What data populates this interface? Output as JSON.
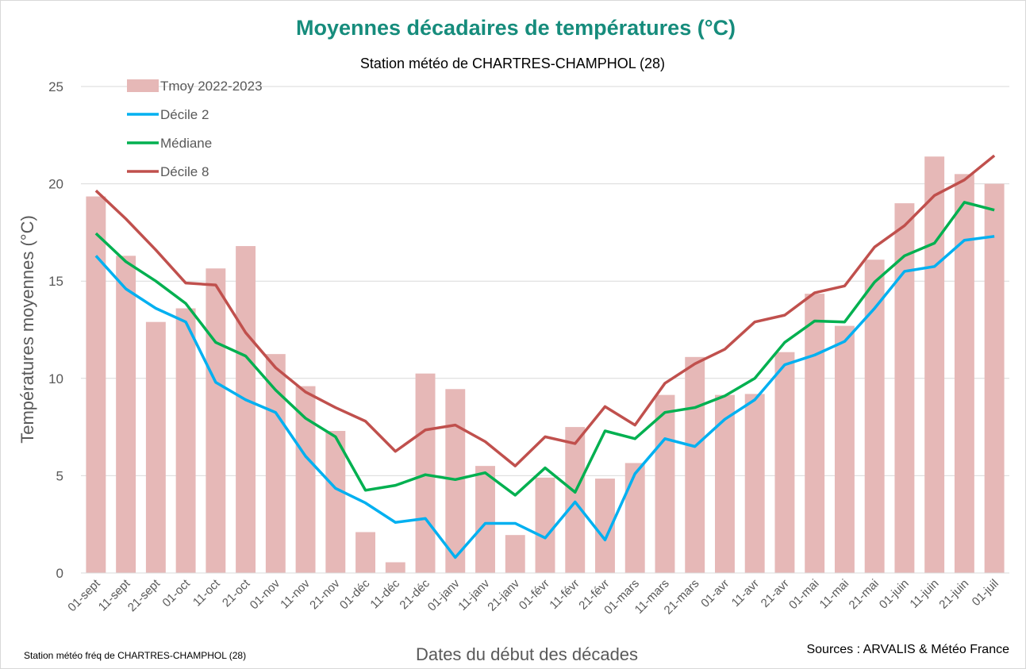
{
  "chart_data": {
    "type": "bar_line",
    "title": "Moyennes décadaires de températures (°C)",
    "subtitle": "Station météo de CHARTRES-CHAMPHOL (28)",
    "y_label": "Températures moyennes (°C)",
    "x_label": "Dates du début des décades",
    "footnote": "Station météo fréq de CHARTRES-CHAMPHOL (28)",
    "source": "Sources : ARVALIS & Météo France",
    "categories": [
      "01-sept",
      "11-sept",
      "21-sept",
      "01-oct",
      "11-oct",
      "21-oct",
      "01-nov",
      "11-nov",
      "21-nov",
      "01-déc",
      "11-déc",
      "21-déc",
      "01-janv",
      "11-janv",
      "21-janv",
      "01-févr",
      "11-févr",
      "21-févr",
      "01-mars",
      "11-mars",
      "21-mars",
      "01-avr",
      "11-avr",
      "21-avr",
      "01-mai",
      "11-mai",
      "21-mai",
      "01-juin",
      "11-juin",
      "21-juin",
      "01-juil"
    ],
    "series": [
      {
        "name": "Tmoy 2022-2023",
        "kind": "bar",
        "color": "#e6b8b7",
        "values": [
          19.35,
          16.3,
          12.9,
          13.6,
          15.65,
          16.8,
          11.25,
          9.6,
          7.3,
          2.1,
          0.55,
          10.25,
          9.45,
          5.5,
          1.95,
          4.9,
          7.5,
          4.85,
          5.65,
          9.15,
          11.1,
          9.15,
          9.2,
          11.35,
          14.35,
          12.7,
          16.1,
          19.0,
          21.4,
          20.5,
          20.0
        ]
      },
      {
        "name": "Décile 2",
        "kind": "line",
        "color": "#00b0f0",
        "values": [
          16.3,
          14.6,
          13.6,
          12.9,
          9.8,
          8.9,
          8.25,
          6.0,
          4.35,
          3.6,
          2.6,
          2.8,
          0.8,
          2.55,
          2.55,
          1.8,
          3.65,
          1.7,
          5.1,
          6.9,
          6.5,
          7.9,
          8.9,
          10.7,
          11.2,
          11.9,
          13.6,
          15.5,
          15.75,
          17.1,
          17.3
        ]
      },
      {
        "name": "Médiane",
        "kind": "line",
        "color": "#00b050",
        "values": [
          17.45,
          16.0,
          15.0,
          13.85,
          11.85,
          11.15,
          9.4,
          7.95,
          7.0,
          4.25,
          4.5,
          5.05,
          4.8,
          5.15,
          4.0,
          5.4,
          4.15,
          7.3,
          6.9,
          8.25,
          8.5,
          9.1,
          10.0,
          11.85,
          12.95,
          12.9,
          14.95,
          16.3,
          16.95,
          19.05,
          18.65
        ]
      },
      {
        "name": "Décile 8",
        "kind": "line",
        "color": "#c0504d",
        "values": [
          19.65,
          18.2,
          16.6,
          14.9,
          14.8,
          12.35,
          10.55,
          9.3,
          8.5,
          7.8,
          6.25,
          7.35,
          7.6,
          6.75,
          5.5,
          7.0,
          6.65,
          8.55,
          7.6,
          9.75,
          10.75,
          11.5,
          12.9,
          13.25,
          14.4,
          14.75,
          16.75,
          17.85,
          19.4,
          20.2,
          21.45
        ]
      }
    ],
    "ylim": [
      0,
      25
    ],
    "yticks": [
      0,
      5,
      10,
      15,
      20,
      25
    ],
    "grid": true,
    "legend": "top-left"
  }
}
